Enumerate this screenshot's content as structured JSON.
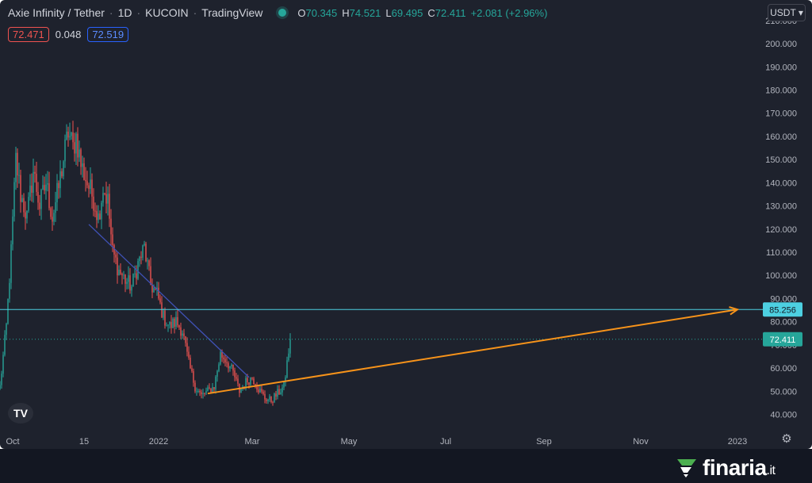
{
  "header": {
    "symbol": "Axie Infinity / Tether",
    "interval": "1D",
    "exchange": "KUCOIN",
    "source": "TradingView",
    "ohlc": {
      "o": "70.345",
      "h": "74.521",
      "l": "69.495",
      "c": "72.411",
      "change": "+2.081 (+2.96%)"
    },
    "o_label": "O",
    "h_label": "H",
    "l_label": "L",
    "c_label": "C"
  },
  "readouts": {
    "sell": "72.471",
    "spread": "0.048",
    "buy": "72.519"
  },
  "currency": "USDT",
  "tv_logo": "TV",
  "brand": {
    "name": "finaria",
    "tld": ".it"
  },
  "colors": {
    "up": "#26a69a",
    "down": "#ef5350",
    "hline": "#4dd0e1",
    "downtrend": "#3f51b5",
    "projection": "#f7931a",
    "background": "#1e222d"
  },
  "icons": {
    "settings": "gear-icon",
    "currency_caret": "chevron-down-icon",
    "logo": "finaria-logo-icon"
  },
  "chart_data": {
    "type": "candlestick",
    "symbol": "AXS/USDT",
    "ylim": [
      34,
      212
    ],
    "yticks": [
      "40.000",
      "50.000",
      "60.000",
      "70.000",
      "80.000",
      "90.000",
      "100.000",
      "110.000",
      "120.000",
      "130.000",
      "140.000",
      "150.000",
      "160.000",
      "170.000",
      "180.000",
      "190.000",
      "200.000",
      "210.000"
    ],
    "ytick_values": [
      40,
      50,
      60,
      70,
      80,
      90,
      100,
      110,
      120,
      130,
      140,
      150,
      160,
      170,
      180,
      190,
      200,
      210
    ],
    "xticks": [
      "Oct",
      "15",
      "2022",
      "Mar",
      "May",
      "Jul",
      "Sep",
      "Nov",
      "2023"
    ],
    "xtick_dates": [
      "2021-10-01",
      "2021-11-15",
      "2022-01-01",
      "2022-03-01",
      "2022-05-01",
      "2022-07-01",
      "2022-09-01",
      "2022-11-01",
      "2023-01-01"
    ],
    "xlim": [
      "2021-09-23",
      "2023-01-15"
    ],
    "price_path": [
      [
        "2021-09-23",
        52
      ],
      [
        "2021-09-27",
        78
      ],
      [
        "2021-09-30",
        110
      ],
      [
        "2021-10-03",
        150
      ],
      [
        "2021-10-06",
        135
      ],
      [
        "2021-10-10",
        125
      ],
      [
        "2021-10-14",
        145
      ],
      [
        "2021-10-18",
        130
      ],
      [
        "2021-10-22",
        140
      ],
      [
        "2021-10-26",
        125
      ],
      [
        "2021-10-30",
        138
      ],
      [
        "2021-11-02",
        150
      ],
      [
        "2021-11-05",
        162
      ],
      [
        "2021-11-08",
        155
      ],
      [
        "2021-11-10",
        160
      ],
      [
        "2021-11-13",
        148
      ],
      [
        "2021-11-17",
        140
      ],
      [
        "2021-11-21",
        133
      ],
      [
        "2021-11-24",
        125
      ],
      [
        "2021-11-27",
        138
      ],
      [
        "2021-11-30",
        132
      ],
      [
        "2021-12-03",
        110
      ],
      [
        "2021-12-07",
        102
      ],
      [
        "2021-12-11",
        98
      ],
      [
        "2021-12-15",
        95
      ],
      [
        "2021-12-19",
        105
      ],
      [
        "2021-12-23",
        112
      ],
      [
        "2021-12-27",
        96
      ],
      [
        "2021-12-31",
        92
      ],
      [
        "2022-01-04",
        82
      ],
      [
        "2022-01-08",
        78
      ],
      [
        "2022-01-12",
        80
      ],
      [
        "2022-01-16",
        76
      ],
      [
        "2022-01-20",
        62
      ],
      [
        "2022-01-24",
        52
      ],
      [
        "2022-01-28",
        48
      ],
      [
        "2022-02-01",
        50
      ],
      [
        "2022-02-05",
        52
      ],
      [
        "2022-02-09",
        66
      ],
      [
        "2022-02-13",
        63
      ],
      [
        "2022-02-17",
        58
      ],
      [
        "2022-02-21",
        50
      ],
      [
        "2022-02-25",
        54
      ],
      [
        "2022-03-01",
        56
      ],
      [
        "2022-03-05",
        51
      ],
      [
        "2022-03-09",
        47
      ],
      [
        "2022-03-13",
        46
      ],
      [
        "2022-03-17",
        49
      ],
      [
        "2022-03-21",
        52
      ],
      [
        "2022-03-25",
        72.4
      ]
    ],
    "last_close": 72.411,
    "horizontal_line": {
      "value": 85.256,
      "label": "85.256"
    },
    "last_price_label": "72.411",
    "downtrend_line": {
      "from": [
        "2021-11-18",
        122
      ],
      "to": [
        "2022-02-27",
        56
      ]
    },
    "projection_arrow": {
      "from": [
        "2022-02-01",
        49
      ],
      "to": [
        "2023-01-01",
        85.256
      ]
    }
  }
}
